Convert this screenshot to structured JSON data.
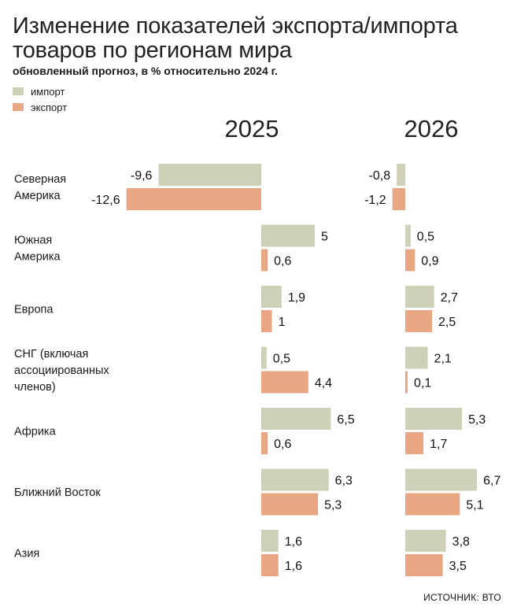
{
  "chart_data": {
    "type": "bar",
    "orientation": "horizontal",
    "title_lines": [
      "Изменение показателей экспорта/импорта",
      "товаров по регионам мира"
    ],
    "subtitle": "обновленный прогноз, в % относительно 2024 г.",
    "legend": [
      {
        "label": "импорт",
        "color": "#cfd0b8"
      },
      {
        "label": "экспорт",
        "color": "#e8a682"
      }
    ],
    "panels": [
      "2025",
      "2026"
    ],
    "categories": [
      [
        "Северная",
        "Америка"
      ],
      [
        "Южная",
        "Америка"
      ],
      [
        "Европа"
      ],
      [
        "СНГ (включая",
        "ассоциированных",
        "членов)"
      ],
      [
        "Африка"
      ],
      [
        "Ближний Восток"
      ],
      [
        "Азия"
      ]
    ],
    "series": [
      {
        "name": "импорт",
        "color": "#cfd0b8",
        "values": {
          "2025": [
            -9.6,
            5,
            1.9,
            0.5,
            6.5,
            6.3,
            1.6
          ],
          "2026": [
            -0.8,
            0.5,
            2.7,
            2.1,
            5.3,
            6.7,
            3.8
          ]
        },
        "labels": {
          "2025": [
            "-9,6",
            "5",
            "1,9",
            "0,5",
            "6,5",
            "6,3",
            "1,6"
          ],
          "2026": [
            "-0,8",
            "0,5",
            "2,7",
            "2,1",
            "5,3",
            "6,7",
            "3,8"
          ]
        }
      },
      {
        "name": "экспорт",
        "color": "#e8a682",
        "values": {
          "2025": [
            -12.6,
            0.6,
            1,
            4.4,
            0.6,
            5.3,
            1.6
          ],
          "2026": [
            -1.2,
            0.9,
            2.5,
            0.1,
            1.7,
            5.1,
            3.5
          ]
        },
        "labels": {
          "2025": [
            "-12,6",
            "0,6",
            "1",
            "4,4",
            "0,6",
            "5,3",
            "1,6"
          ],
          "2026": [
            "-1,2",
            "0,9",
            "2,5",
            "0,1",
            "1,7",
            "5,1",
            "3,5"
          ]
        }
      }
    ],
    "source": "ИСТОЧНИК: ВТО"
  }
}
